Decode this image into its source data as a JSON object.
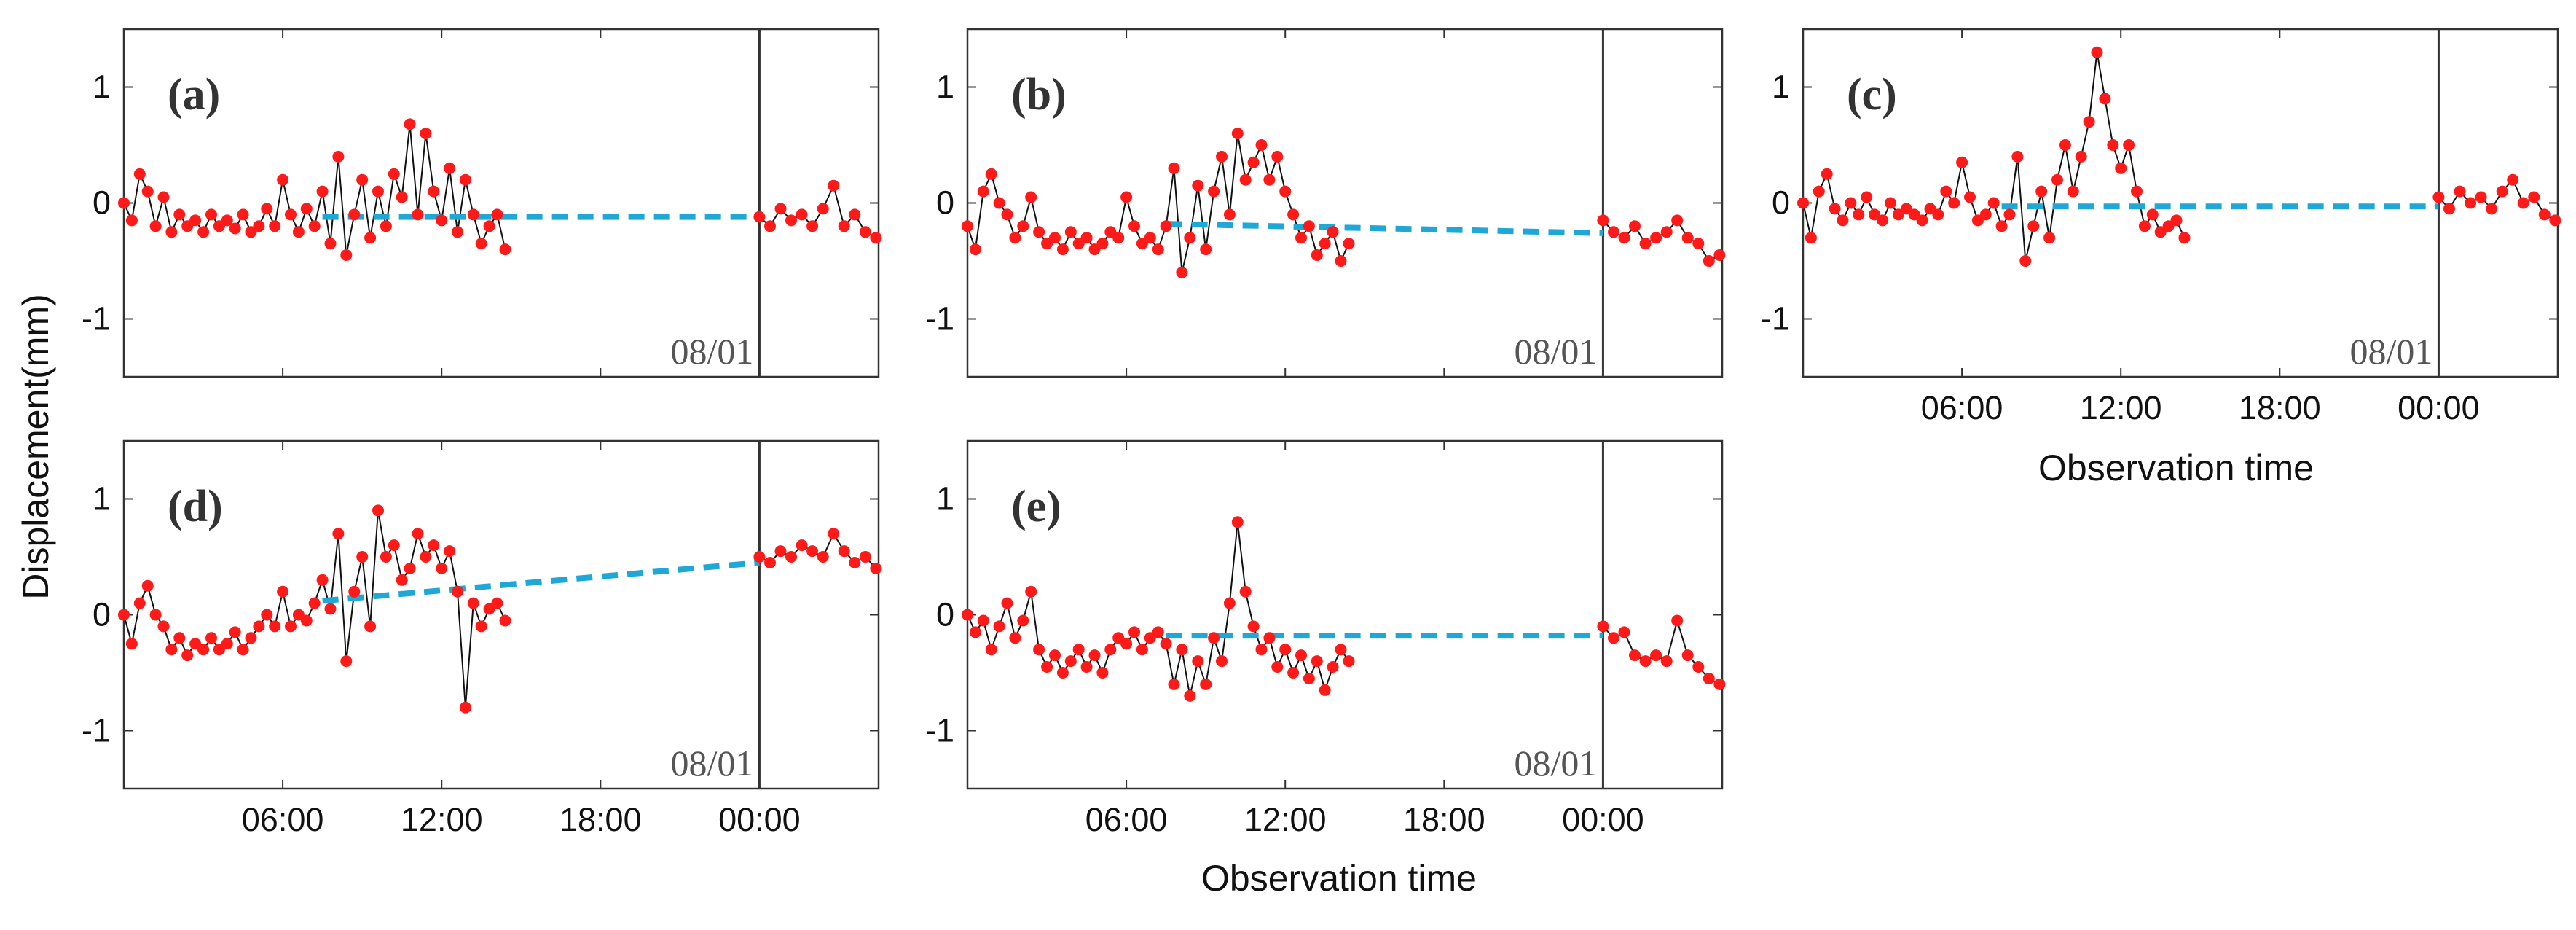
{
  "figure": {
    "ylabel": "Displacement(mm)",
    "xlabel": "Observation time"
  },
  "colors": {
    "measured": "#ff1a1a",
    "measured_line": "#111111",
    "trend": "#1fa8d6",
    "axis": "#333333"
  },
  "chart_data": [
    {
      "type": "line",
      "panel": "(a)",
      "date_marker": "08/01",
      "xlim": [
        0,
        28.5
      ],
      "ylim": [
        -1.5,
        1.5
      ],
      "x_unit": "hours from 00:00",
      "xticks": [
        6,
        12,
        18,
        24
      ],
      "xtick_labels": [
        "06:00",
        "12:00",
        "18:00",
        "00:00"
      ],
      "xtick_labels_shown": false,
      "yticks": [
        1,
        0,
        -1
      ],
      "ytick_labels": [
        "1",
        "0",
        "-1"
      ],
      "series": [
        {
          "name": "measured displacement",
          "segments": [
            {
              "x": [
                0,
                0.3,
                0.6,
                0.9,
                1.2,
                1.5,
                1.8,
                2.1,
                2.4,
                2.7,
                3.0,
                3.3,
                3.6,
                3.9,
                4.2,
                4.5,
                4.8,
                5.1,
                5.4,
                5.7,
                6.0,
                6.3,
                6.6,
                6.9,
                7.2,
                7.5,
                7.8,
                8.1,
                8.4,
                8.7,
                9.0,
                9.3,
                9.6,
                9.9,
                10.2,
                10.5,
                10.8,
                11.1,
                11.4,
                11.7,
                12.0,
                12.3,
                12.6,
                12.9,
                13.2,
                13.5,
                13.8,
                14.1,
                14.4
              ],
              "y": [
                0,
                -0.15,
                0.25,
                0.1,
                -0.2,
                0.05,
                -0.25,
                -0.1,
                -0.2,
                -0.15,
                -0.25,
                -0.1,
                -0.2,
                -0.15,
                -0.22,
                -0.1,
                -0.25,
                -0.2,
                -0.05,
                -0.2,
                0.2,
                -0.1,
                -0.25,
                -0.05,
                -0.2,
                0.1,
                -0.35,
                0.4,
                -0.45,
                -0.1,
                0.2,
                -0.3,
                0.1,
                -0.2,
                0.25,
                0.05,
                0.68,
                -0.1,
                0.6,
                0.1,
                -0.15,
                0.3,
                -0.25,
                0.2,
                -0.1,
                -0.35,
                -0.2,
                -0.1,
                -0.4
              ]
            },
            {
              "x": [
                24,
                24.4,
                24.8,
                25.2,
                25.6,
                26.0,
                26.4,
                26.8,
                27.2,
                27.6,
                28.0,
                28.4
              ],
              "y": [
                -0.12,
                -0.2,
                -0.05,
                -0.15,
                -0.1,
                -0.2,
                -0.05,
                0.15,
                -0.2,
                -0.1,
                -0.25,
                -0.3
              ]
            }
          ]
        },
        {
          "name": "trend",
          "style": "dashed",
          "x": [
            7.5,
            24
          ],
          "y": [
            -0.12,
            -0.12
          ]
        }
      ]
    },
    {
      "type": "line",
      "panel": "(b)",
      "date_marker": "08/01",
      "xlim": [
        0,
        28.5
      ],
      "ylim": [
        -1.5,
        1.5
      ],
      "x_unit": "hours from 00:00",
      "xticks": [
        6,
        12,
        18,
        24
      ],
      "xtick_labels": [
        "06:00",
        "12:00",
        "18:00",
        "00:00"
      ],
      "xtick_labels_shown": false,
      "yticks": [
        1,
        0,
        -1
      ],
      "ytick_labels": [
        "1",
        "0",
        "-1"
      ],
      "series": [
        {
          "name": "measured displacement",
          "segments": [
            {
              "x": [
                0,
                0.3,
                0.6,
                0.9,
                1.2,
                1.5,
                1.8,
                2.1,
                2.4,
                2.7,
                3.0,
                3.3,
                3.6,
                3.9,
                4.2,
                4.5,
                4.8,
                5.1,
                5.4,
                5.7,
                6.0,
                6.3,
                6.6,
                6.9,
                7.2,
                7.5,
                7.8,
                8.1,
                8.4,
                8.7,
                9.0,
                9.3,
                9.6,
                9.9,
                10.2,
                10.5,
                10.8,
                11.1,
                11.4,
                11.7,
                12.0,
                12.3,
                12.6,
                12.9,
                13.2,
                13.5,
                13.8,
                14.1,
                14.4
              ],
              "y": [
                -0.2,
                -0.4,
                0.1,
                0.25,
                0,
                -0.1,
                -0.3,
                -0.2,
                0.05,
                -0.25,
                -0.35,
                -0.3,
                -0.4,
                -0.25,
                -0.35,
                -0.3,
                -0.4,
                -0.35,
                -0.25,
                -0.3,
                0.05,
                -0.2,
                -0.35,
                -0.3,
                -0.4,
                -0.2,
                0.3,
                -0.6,
                -0.3,
                0.15,
                -0.4,
                0.1,
                0.4,
                -0.1,
                0.6,
                0.2,
                0.35,
                0.5,
                0.2,
                0.4,
                0.1,
                -0.1,
                -0.3,
                -0.2,
                -0.45,
                -0.35,
                -0.25,
                -0.5,
                -0.35
              ]
            },
            {
              "x": [
                24,
                24.4,
                24.8,
                25.2,
                25.6,
                26.0,
                26.4,
                26.8,
                27.2,
                27.6,
                28.0,
                28.4
              ],
              "y": [
                -0.15,
                -0.25,
                -0.3,
                -0.2,
                -0.35,
                -0.3,
                -0.25,
                -0.15,
                -0.3,
                -0.35,
                -0.5,
                -0.45
              ]
            }
          ]
        },
        {
          "name": "trend",
          "style": "dashed",
          "x": [
            7.5,
            24
          ],
          "y": [
            -0.18,
            -0.26
          ]
        }
      ]
    },
    {
      "type": "line",
      "panel": "(c)",
      "date_marker": "08/01",
      "xlim": [
        0,
        28.5
      ],
      "ylim": [
        -1.5,
        1.5
      ],
      "x_unit": "hours from 00:00",
      "xticks": [
        6,
        12,
        18,
        24
      ],
      "xtick_labels": [
        "06:00",
        "12:00",
        "18:00",
        "00:00"
      ],
      "xtick_labels_shown": true,
      "xlabel_shown": true,
      "yticks": [
        1,
        0,
        -1
      ],
      "ytick_labels": [
        "1",
        "0",
        "-1"
      ],
      "series": [
        {
          "name": "measured displacement",
          "segments": [
            {
              "x": [
                0,
                0.3,
                0.6,
                0.9,
                1.2,
                1.5,
                1.8,
                2.1,
                2.4,
                2.7,
                3.0,
                3.3,
                3.6,
                3.9,
                4.2,
                4.5,
                4.8,
                5.1,
                5.4,
                5.7,
                6.0,
                6.3,
                6.6,
                6.9,
                7.2,
                7.5,
                7.8,
                8.1,
                8.4,
                8.7,
                9.0,
                9.3,
                9.6,
                9.9,
                10.2,
                10.5,
                10.8,
                11.1,
                11.4,
                11.7,
                12.0,
                12.3,
                12.6,
                12.9,
                13.2,
                13.5,
                13.8,
                14.1,
                14.4
              ],
              "y": [
                0,
                -0.3,
                0.1,
                0.25,
                -0.05,
                -0.15,
                0,
                -0.1,
                0.05,
                -0.1,
                -0.15,
                0,
                -0.1,
                -0.05,
                -0.1,
                -0.15,
                -0.05,
                -0.1,
                0.1,
                0,
                0.35,
                0.05,
                -0.15,
                -0.1,
                0,
                -0.2,
                -0.1,
                0.4,
                -0.5,
                -0.2,
                0.1,
                -0.3,
                0.2,
                0.5,
                0.1,
                0.4,
                0.7,
                1.3,
                0.9,
                0.5,
                0.3,
                0.5,
                0.1,
                -0.2,
                -0.1,
                -0.25,
                -0.2,
                -0.15,
                -0.3
              ]
            },
            {
              "x": [
                24,
                24.4,
                24.8,
                25.2,
                25.6,
                26.0,
                26.4,
                26.8,
                27.2,
                27.6,
                28.0,
                28.4
              ],
              "y": [
                0.05,
                -0.05,
                0.1,
                0,
                0.05,
                -0.05,
                0.1,
                0.2,
                0,
                0.05,
                -0.1,
                -0.15
              ]
            }
          ]
        },
        {
          "name": "trend",
          "style": "dashed",
          "x": [
            7.5,
            24
          ],
          "y": [
            -0.03,
            -0.03
          ]
        }
      ]
    },
    {
      "type": "line",
      "panel": "(d)",
      "date_marker": "08/01",
      "xlim": [
        0,
        28.5
      ],
      "ylim": [
        -1.5,
        1.5
      ],
      "x_unit": "hours from 00:00",
      "xticks": [
        6,
        12,
        18,
        24
      ],
      "xtick_labels": [
        "06:00",
        "12:00",
        "18:00",
        "00:00"
      ],
      "xtick_labels_shown": true,
      "yticks": [
        1,
        0,
        -1
      ],
      "ytick_labels": [
        "1",
        "0",
        "-1"
      ],
      "series": [
        {
          "name": "measured displacement",
          "segments": [
            {
              "x": [
                0,
                0.3,
                0.6,
                0.9,
                1.2,
                1.5,
                1.8,
                2.1,
                2.4,
                2.7,
                3.0,
                3.3,
                3.6,
                3.9,
                4.2,
                4.5,
                4.8,
                5.1,
                5.4,
                5.7,
                6.0,
                6.3,
                6.6,
                6.9,
                7.2,
                7.5,
                7.8,
                8.1,
                8.4,
                8.7,
                9.0,
                9.3,
                9.6,
                9.9,
                10.2,
                10.5,
                10.8,
                11.1,
                11.4,
                11.7,
                12.0,
                12.3,
                12.6,
                12.9,
                13.2,
                13.5,
                13.8,
                14.1,
                14.4
              ],
              "y": [
                0,
                -0.25,
                0.1,
                0.25,
                0,
                -0.1,
                -0.3,
                -0.2,
                -0.35,
                -0.25,
                -0.3,
                -0.2,
                -0.3,
                -0.25,
                -0.15,
                -0.3,
                -0.2,
                -0.1,
                0,
                -0.1,
                0.2,
                -0.1,
                0,
                -0.05,
                0.1,
                0.3,
                0.05,
                0.7,
                -0.4,
                0.2,
                0.5,
                -0.1,
                0.9,
                0.5,
                0.6,
                0.3,
                0.4,
                0.7,
                0.5,
                0.6,
                0.4,
                0.55,
                0.2,
                -0.8,
                0.1,
                -0.1,
                0.05,
                0.1,
                -0.05
              ]
            },
            {
              "x": [
                24,
                24.4,
                24.8,
                25.2,
                25.6,
                26.0,
                26.4,
                26.8,
                27.2,
                27.6,
                28.0,
                28.4
              ],
              "y": [
                0.5,
                0.45,
                0.55,
                0.5,
                0.6,
                0.55,
                0.5,
                0.7,
                0.55,
                0.45,
                0.5,
                0.4
              ]
            }
          ]
        },
        {
          "name": "trend",
          "style": "dashed",
          "x": [
            7.5,
            24
          ],
          "y": [
            0.12,
            0.45
          ]
        }
      ]
    },
    {
      "type": "line",
      "panel": "(e)",
      "date_marker": "08/01",
      "xlim": [
        0,
        28.5
      ],
      "ylim": [
        -1.5,
        1.5
      ],
      "x_unit": "hours from 00:00",
      "xticks": [
        6,
        12,
        18,
        24
      ],
      "xtick_labels": [
        "06:00",
        "12:00",
        "18:00",
        "00:00"
      ],
      "xtick_labels_shown": true,
      "xlabel_shown": true,
      "yticks": [
        1,
        0,
        -1
      ],
      "ytick_labels": [
        "1",
        "0",
        "-1"
      ],
      "series": [
        {
          "name": "measured displacement",
          "segments": [
            {
              "x": [
                0,
                0.3,
                0.6,
                0.9,
                1.2,
                1.5,
                1.8,
                2.1,
                2.4,
                2.7,
                3.0,
                3.3,
                3.6,
                3.9,
                4.2,
                4.5,
                4.8,
                5.1,
                5.4,
                5.7,
                6.0,
                6.3,
                6.6,
                6.9,
                7.2,
                7.5,
                7.8,
                8.1,
                8.4,
                8.7,
                9.0,
                9.3,
                9.6,
                9.9,
                10.2,
                10.5,
                10.8,
                11.1,
                11.4,
                11.7,
                12.0,
                12.3,
                12.6,
                12.9,
                13.2,
                13.5,
                13.8,
                14.1,
                14.4
              ],
              "y": [
                0,
                -0.15,
                -0.05,
                -0.3,
                -0.1,
                0.1,
                -0.2,
                -0.05,
                0.2,
                -0.3,
                -0.45,
                -0.35,
                -0.5,
                -0.4,
                -0.3,
                -0.45,
                -0.35,
                -0.5,
                -0.3,
                -0.2,
                -0.25,
                -0.15,
                -0.3,
                -0.2,
                -0.15,
                -0.25,
                -0.6,
                -0.3,
                -0.7,
                -0.4,
                -0.6,
                -0.2,
                -0.4,
                0.1,
                0.8,
                0.2,
                -0.1,
                -0.3,
                -0.2,
                -0.45,
                -0.3,
                -0.5,
                -0.35,
                -0.55,
                -0.4,
                -0.65,
                -0.45,
                -0.3,
                -0.4
              ]
            },
            {
              "x": [
                24,
                24.4,
                24.8,
                25.2,
                25.6,
                26.0,
                26.4,
                26.8,
                27.2,
                27.6,
                28.0,
                28.4
              ],
              "y": [
                -0.1,
                -0.2,
                -0.15,
                -0.35,
                -0.4,
                -0.35,
                -0.4,
                -0.05,
                -0.35,
                -0.45,
                -0.55,
                -0.6
              ]
            }
          ]
        },
        {
          "name": "trend",
          "style": "dashed",
          "x": [
            7.5,
            24
          ],
          "y": [
            -0.18,
            -0.18
          ]
        }
      ]
    }
  ]
}
